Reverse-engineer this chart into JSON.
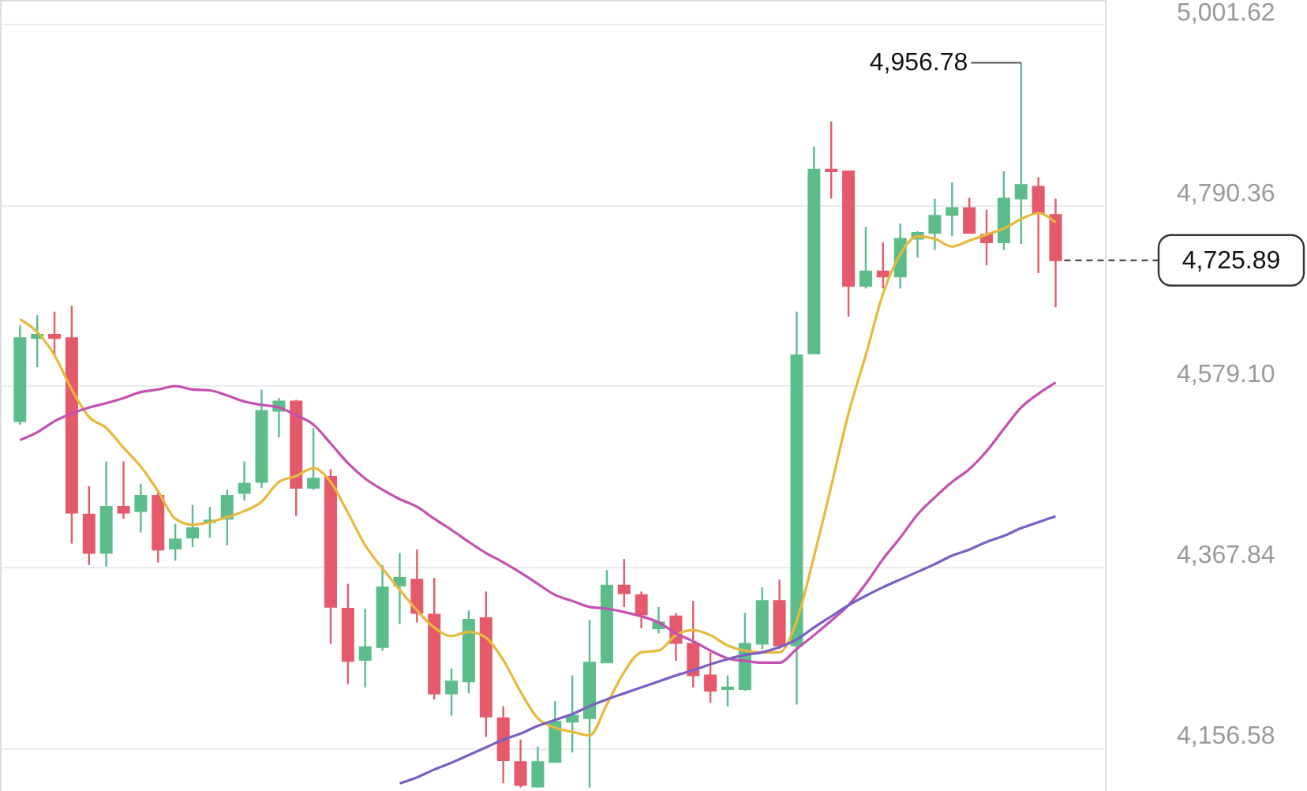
{
  "chart_data": {
    "type": "candlestick",
    "categories": [
      null,
      null,
      null,
      null,
      null,
      null,
      null,
      null,
      null,
      null,
      null,
      null,
      null,
      null,
      null,
      null,
      null,
      null,
      null,
      null,
      null,
      null,
      null,
      null,
      null,
      null,
      null,
      null,
      null,
      null,
      null,
      null,
      null,
      null,
      null,
      null,
      null,
      null,
      null,
      null,
      null,
      null,
      null,
      null,
      null,
      null,
      null,
      null,
      null,
      null,
      null,
      null,
      null,
      null,
      null,
      null,
      null,
      null,
      null,
      null,
      null
    ],
    "ohlc": [
      [
        4538,
        4650,
        4534,
        4635
      ],
      [
        4635,
        4662,
        4601,
        4639
      ],
      [
        4639,
        4666,
        4615,
        4635
      ],
      [
        4635,
        4673,
        4395,
        4431
      ],
      [
        4429,
        4462,
        4370,
        4384
      ],
      [
        4384,
        4491,
        4368,
        4438
      ],
      [
        4438,
        4491,
        4424,
        4431
      ],
      [
        4433,
        4465,
        4408,
        4451
      ],
      [
        4451,
        4458,
        4373,
        4388
      ],
      [
        4389,
        4418,
        4375,
        4400
      ],
      [
        4402,
        4440,
        4391,
        4413
      ],
      [
        4420,
        4438,
        4402,
        4422
      ],
      [
        4424,
        4458,
        4393,
        4451
      ],
      [
        4454,
        4491,
        4445,
        4465
      ],
      [
        4467,
        4575,
        4460,
        4550
      ],
      [
        4550,
        4565,
        4519,
        4561
      ],
      [
        4561,
        4563,
        4427,
        4460
      ],
      [
        4460,
        4530,
        4458,
        4471
      ],
      [
        4473,
        4482,
        4278,
        4321
      ],
      [
        4319,
        4348,
        4231,
        4258
      ],
      [
        4259,
        4319,
        4227,
        4274
      ],
      [
        4274,
        4370,
        4270,
        4344
      ],
      [
        4346,
        4384,
        4301,
        4355
      ],
      [
        4353,
        4388,
        4303,
        4314
      ],
      [
        4312,
        4355,
        4213,
        4220
      ],
      [
        4220,
        4249,
        4194,
        4234
      ],
      [
        4234,
        4317,
        4220,
        4306
      ],
      [
        4308,
        4339,
        4169,
        4193
      ],
      [
        4191,
        4205,
        4115,
        4142
      ],
      [
        4140,
        4166,
        4110,
        4113
      ],
      [
        4111,
        4158,
        4110,
        4140
      ],
      [
        4140,
        4211,
        4140,
        4187
      ],
      [
        4187,
        4241,
        4151,
        4194
      ],
      [
        4191,
        4306,
        4110,
        4256
      ],
      [
        4256,
        4364,
        4256,
        4346
      ],
      [
        4346,
        4377,
        4321,
        4337
      ],
      [
        4335,
        4339,
        4296,
        4312
      ],
      [
        4296,
        4321,
        4290,
        4303
      ],
      [
        4310,
        4314,
        4258,
        4279
      ],
      [
        4278,
        4328,
        4227,
        4241
      ],
      [
        4241,
        4268,
        4209,
        4223
      ],
      [
        4225,
        4241,
        4205,
        4227
      ],
      [
        4225,
        4314,
        4223,
        4278
      ],
      [
        4278,
        4344,
        4272,
        4328
      ],
      [
        4328,
        4353,
        4272,
        4276
      ],
      [
        4276,
        4666,
        4207,
        4615
      ],
      [
        4617,
        4859,
        4617,
        4832
      ],
      [
        4832,
        4888,
        4798,
        4830
      ],
      [
        4830,
        4830,
        4660,
        4696
      ],
      [
        4696,
        4765,
        4693,
        4713
      ],
      [
        4713,
        4747,
        4693,
        4707
      ],
      [
        4707,
        4769,
        4693,
        4751
      ],
      [
        4751,
        4760,
        4729,
        4758
      ],
      [
        4758,
        4798,
        4738,
        4778
      ],
      [
        4779,
        4817,
        4754,
        4787
      ],
      [
        4787,
        4799,
        4758,
        4758
      ],
      [
        4756,
        4785,
        4720,
        4747
      ],
      [
        4747,
        4830,
        4738,
        4798
      ],
      [
        4798,
        4956.78,
        4745,
        4814
      ],
      [
        4812,
        4823,
        4711,
        4781
      ],
      [
        4779,
        4798,
        4671,
        4725.89
      ]
    ],
    "colors": [
      "#5cbd8b",
      "#5cbd8b",
      "#e45a6a",
      "#e45a6a",
      "#e45a6a",
      "#5cbd8b",
      "#e45a6a",
      "#5cbd8b",
      "#e45a6a",
      "#5cbd8b",
      "#5cbd8b",
      "#5cbd8b",
      "#5cbd8b",
      "#5cbd8b",
      "#5cbd8b",
      "#5cbd8b",
      "#e45a6a",
      "#5cbd8b",
      "#e45a6a",
      "#e45a6a",
      "#5cbd8b",
      "#5cbd8b",
      "#5cbd8b",
      "#e45a6a",
      "#e45a6a",
      "#5cbd8b",
      "#5cbd8b",
      "#e45a6a",
      "#e45a6a",
      "#e45a6a",
      "#5cbd8b",
      "#5cbd8b",
      "#5cbd8b",
      "#5cbd8b",
      "#5cbd8b",
      "#e45a6a",
      "#e45a6a",
      "#5cbd8b",
      "#e45a6a",
      "#e45a6a",
      "#e45a6a",
      "#5cbd8b",
      "#5cbd8b",
      "#5cbd8b",
      "#e45a6a",
      "#5cbd8b",
      "#5cbd8b",
      "#e45a6a",
      "#e45a6a",
      "#5cbd8b",
      "#e45a6a",
      "#5cbd8b",
      "#5cbd8b",
      "#5cbd8b",
      "#5cbd8b",
      "#e45a6a",
      "#e45a6a",
      "#5cbd8b",
      "#5cbd8b",
      "#e45a6a",
      "#e45a6a"
    ],
    "series": [
      {
        "type": "line",
        "color": "#e8b83c",
        "values": [
          4657,
          4642,
          4615,
          4575,
          4543,
          4530,
          4507,
          4485,
          4456,
          4424,
          4417,
          4420,
          4426,
          4433,
          4444,
          4467,
          4474,
          4483,
          4467,
          4431,
          4393,
          4366,
          4341,
          4317,
          4297,
          4287,
          4292,
          4285,
          4259,
          4222,
          4191,
          4180,
          4175,
          4171,
          4207,
          4245,
          4268,
          4270,
          4288,
          4294,
          4288,
          4276,
          4270,
          4268,
          4268,
          4305,
          4380,
          4462,
          4547,
          4615,
          4687,
          4733,
          4754,
          4751,
          4742,
          4749,
          4756,
          4763,
          4774,
          4781,
          4770
        ]
      },
      {
        "type": "line",
        "color": "#c64fb2",
        "values": [
          4516,
          4525,
          4538,
          4547,
          4554,
          4559,
          4565,
          4572,
          4575,
          4579,
          4575,
          4574,
          4568,
          4561,
          4557,
          4554,
          4545,
          4534,
          4512,
          4489,
          4471,
          4458,
          4447,
          4438,
          4424,
          4411,
          4397,
          4384,
          4373,
          4361,
          4348,
          4335,
          4328,
          4321,
          4319,
          4315,
          4310,
          4303,
          4290,
          4281,
          4270,
          4261,
          4258,
          4256,
          4256,
          4272,
          4288,
          4305,
          4323,
          4348,
          4377,
          4402,
          4429,
          4449,
          4467,
          4482,
          4503,
          4529,
          4554,
          4570,
          4583
        ]
      },
      {
        "type": "line",
        "color": "#7a5fc4",
        "values": [
          null,
          null,
          null,
          null,
          null,
          null,
          null,
          null,
          null,
          null,
          null,
          null,
          null,
          null,
          null,
          null,
          null,
          null,
          null,
          null,
          null,
          null,
          4115,
          4122,
          4131,
          4139,
          4148,
          4157,
          4166,
          4173,
          4182,
          4189,
          4196,
          4205,
          4213,
          4220,
          4227,
          4234,
          4241,
          4247,
          4254,
          4260,
          4265,
          4268,
          4274,
          4283,
          4297,
          4310,
          4323,
          4334,
          4344,
          4353,
          4362,
          4371,
          4381,
          4388,
          4397,
          4404,
          4413,
          4420,
          4427
        ]
      }
    ],
    "ylim": [
      4106,
      5030
    ],
    "yticks": [
      {
        "value": 4156.58,
        "label": "4,156.58"
      },
      {
        "value": 4367.84,
        "label": "4,367.84"
      },
      {
        "value": 4579.1,
        "label": "4,579.10"
      },
      {
        "value": 4790.36,
        "label": "4,790.36"
      },
      {
        "value": 5001.62,
        "label": "5,001.62"
      }
    ],
    "grid": "y",
    "ref_lines": [
      {
        "axis": "y",
        "value": 4725.89,
        "label": "4,725.89",
        "color": "#333333",
        "line_style": "dashed"
      }
    ],
    "annotations": [
      "4,956.78"
    ]
  }
}
